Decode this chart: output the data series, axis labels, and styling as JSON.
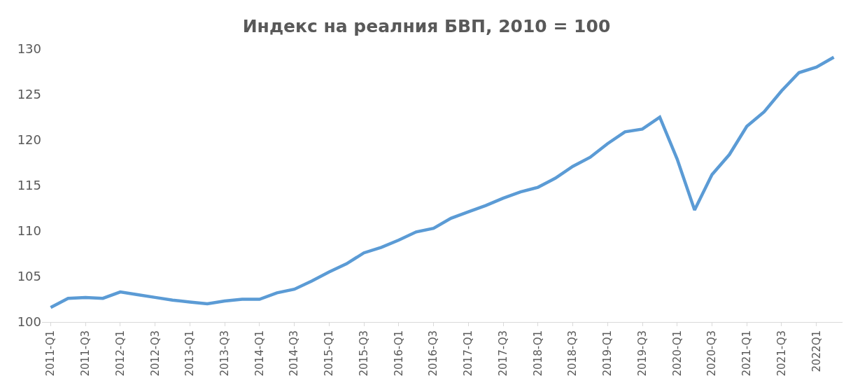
{
  "chart_data": {
    "type": "line",
    "title": "Индекс на реалния БВП, 2010 = 100",
    "categories": [
      "2011-Q1",
      null,
      "2011-Q3",
      null,
      "2012-Q1",
      null,
      "2012-Q3",
      null,
      "2013-Q1",
      null,
      "2013-Q3",
      null,
      "2014-Q1",
      null,
      "2014-Q3",
      null,
      "2015-Q1",
      null,
      "2015-Q3",
      null,
      "2016-Q1",
      null,
      "2016-Q3",
      null,
      "2017-Q1",
      null,
      "2017-Q3",
      null,
      "2018-Q1",
      null,
      "2018-Q3",
      null,
      "2019-Q1",
      null,
      "2019-Q3",
      null,
      "2020-Q1",
      null,
      "2020-Q3",
      null,
      "2021-Q1",
      null,
      "2021-Q3",
      null,
      "2022Q1",
      null
    ],
    "series": [
      {
        "color": "#5b9bd5",
        "values": [
          101.6,
          102.6,
          102.7,
          102.6,
          103.3,
          103.0,
          102.7,
          102.4,
          102.2,
          102.0,
          102.3,
          102.5,
          102.5,
          103.2,
          103.6,
          104.5,
          105.5,
          106.4,
          107.6,
          108.2,
          109.0,
          109.9,
          110.3,
          111.4,
          112.1,
          112.8,
          113.6,
          114.3,
          114.8,
          115.8,
          117.1,
          118.1,
          119.6,
          120.9,
          121.2,
          122.5,
          117.9,
          112.3,
          116.2,
          118.4,
          121.5,
          123.1,
          125.4,
          127.4,
          128.0,
          129.1
        ]
      }
    ],
    "ylim": [
      100,
      130
    ],
    "yticks": [
      100,
      105,
      110,
      115,
      120,
      125,
      130
    ],
    "marker": "none",
    "line_style": "solid"
  }
}
